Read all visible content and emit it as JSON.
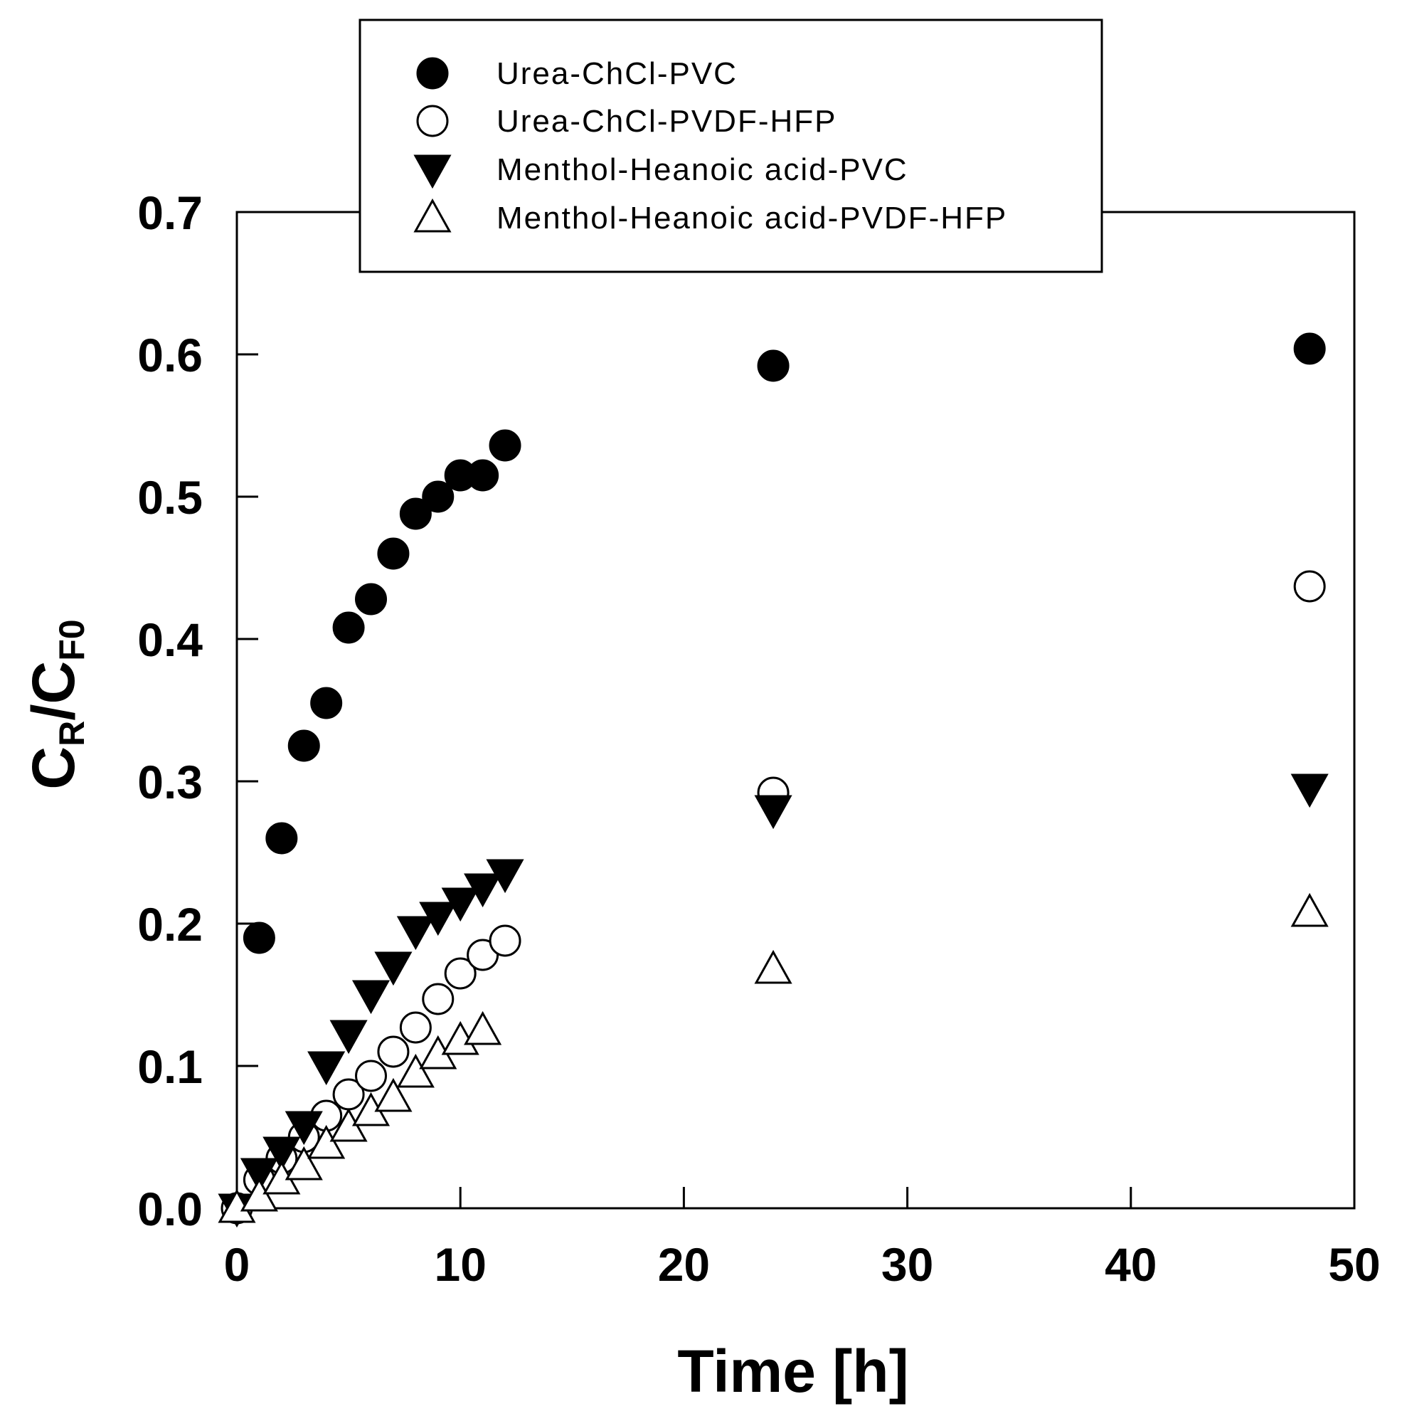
{
  "chart_data": {
    "type": "scatter",
    "title": "",
    "xlabel": "Time [h]",
    "ylabel": {
      "main": "C",
      "sub1": "R",
      "sep": "/C",
      "sub2": "F0"
    },
    "xlim": [
      0,
      50
    ],
    "ylim": [
      0,
      0.7
    ],
    "xticks": [
      0,
      10,
      20,
      30,
      40,
      50
    ],
    "xtick_labels": [
      "0",
      "10",
      "20",
      "30",
      "40",
      "50"
    ],
    "yticks": [
      0,
      0.1,
      0.2,
      0.3,
      0.4,
      0.5,
      0.6,
      0.7
    ],
    "ytick_labels": [
      "0.0",
      "0.1",
      "0.2",
      "0.3",
      "0.4",
      "0.5",
      "0.6",
      "0.7"
    ],
    "grid": false,
    "legend_position": "top-center",
    "series": [
      {
        "name": "Urea-ChCl-PVC",
        "marker": "circle-filled",
        "x": [
          1,
          2,
          3,
          4,
          5,
          6,
          7,
          8,
          9,
          10,
          11,
          12,
          24,
          48
        ],
        "y": [
          0.19,
          0.26,
          0.325,
          0.355,
          0.408,
          0.428,
          0.46,
          0.488,
          0.5,
          0.515,
          0.515,
          0.536,
          0.592,
          0.604
        ]
      },
      {
        "name": "Urea-ChCl-PVDF-HFP",
        "marker": "circle-open",
        "x": [
          0,
          1,
          2,
          3,
          4,
          5,
          6,
          7,
          8,
          9,
          10,
          11,
          12,
          24,
          48
        ],
        "y": [
          0.0,
          0.02,
          0.035,
          0.05,
          0.065,
          0.08,
          0.093,
          0.11,
          0.127,
          0.147,
          0.165,
          0.178,
          0.188,
          0.292,
          0.437
        ]
      },
      {
        "name": "Menthol-Heanoic acid-PVC",
        "marker": "triangle-down-filled",
        "x": [
          0,
          1,
          2,
          3,
          4,
          5,
          6,
          7,
          8,
          9,
          10,
          11,
          12,
          24,
          48
        ],
        "y": [
          0.0,
          0.025,
          0.04,
          0.058,
          0.1,
          0.122,
          0.15,
          0.17,
          0.195,
          0.205,
          0.215,
          0.225,
          0.235,
          0.28,
          0.295
        ]
      },
      {
        "name": "Menthol-Heanoic acid-PVDF-HFP",
        "marker": "triangle-up-open",
        "x": [
          0,
          1,
          2,
          3,
          4,
          5,
          6,
          7,
          8,
          9,
          10,
          11,
          24,
          48
        ],
        "y": [
          0.0,
          0.008,
          0.02,
          0.03,
          0.045,
          0.057,
          0.068,
          0.078,
          0.095,
          0.108,
          0.118,
          0.125,
          0.168,
          0.208
        ]
      }
    ]
  }
}
